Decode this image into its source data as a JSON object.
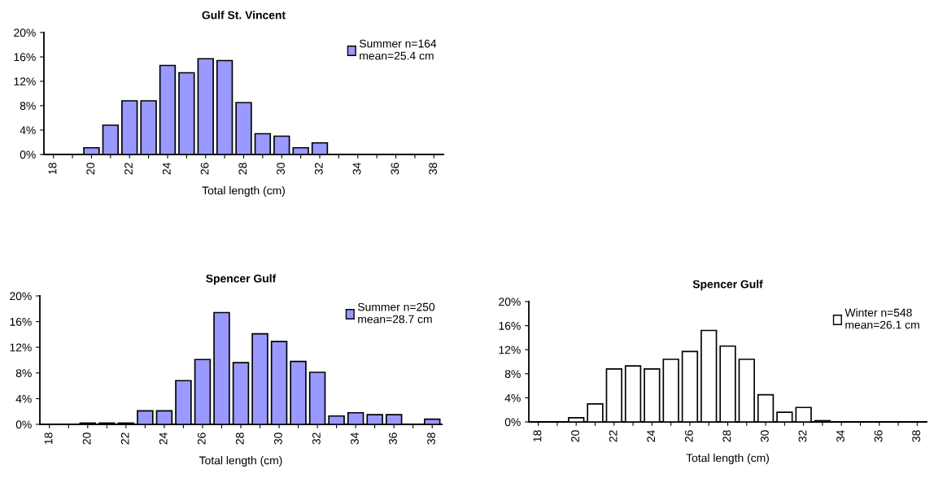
{
  "chart_data": [
    {
      "type": "bar",
      "title": "Gulf St. Vincent",
      "xlabel": "Total length (cm)",
      "categories": [
        "18",
        null,
        "20",
        null,
        "22",
        null,
        "24",
        null,
        "26",
        null,
        "28",
        null,
        "30",
        null,
        "32",
        null,
        "34",
        null,
        "36",
        null,
        "38"
      ],
      "series": [
        {
          "name": "Summer n=164\nmean=25.4 cm",
          "color": "#9999ff",
          "values": [
            0,
            0,
            1.1,
            4.8,
            8.8,
            8.8,
            14.6,
            13.4,
            15.7,
            15.4,
            8.5,
            3.4,
            3.0,
            1.1,
            1.9,
            0,
            0,
            0,
            0,
            0,
            0
          ]
        }
      ],
      "ylim": [
        0,
        20
      ],
      "yticks": [
        {
          "value": 0,
          "label": "0%"
        },
        {
          "value": 4,
          "label": "4%"
        },
        {
          "value": 8,
          "label": "8%"
        },
        {
          "value": 12,
          "label": "12%"
        },
        {
          "value": 16,
          "label": "16%"
        },
        {
          "value": 20,
          "label": "20%"
        }
      ],
      "legend": "top right"
    },
    {
      "type": "bar",
      "title": "Spencer Gulf",
      "xlabel": "Total length (cm)",
      "categories": [
        "18",
        null,
        "20",
        null,
        "22",
        null,
        "24",
        null,
        "26",
        null,
        "28",
        null,
        "30",
        null,
        "32",
        null,
        "34",
        null,
        "36",
        null,
        "38"
      ],
      "series": [
        {
          "name": "Summer n=250\nmean=28.7 cm",
          "color": "#9999ff",
          "values": [
            0,
            0,
            0.2,
            0.2,
            0.2,
            2.1,
            2.1,
            6.8,
            10.1,
            17.4,
            9.6,
            14.1,
            12.9,
            9.8,
            8.1,
            1.3,
            1.8,
            1.5,
            1.5,
            0,
            0.8
          ]
        }
      ],
      "ylim": [
        0,
        20
      ],
      "yticks": [
        {
          "value": 0,
          "label": "0%"
        },
        {
          "value": 4,
          "label": "4%"
        },
        {
          "value": 8,
          "label": "8%"
        },
        {
          "value": 12,
          "label": "12%"
        },
        {
          "value": 16,
          "label": "16%"
        },
        {
          "value": 20,
          "label": "20%"
        }
      ],
      "legend": "top right"
    },
    {
      "type": "bar",
      "title": "Spencer Gulf",
      "xlabel": "Total length (cm)",
      "categories": [
        "18",
        null,
        "20",
        null,
        "22",
        null,
        "24",
        null,
        "26",
        null,
        "28",
        null,
        "30",
        null,
        "32",
        null,
        "34",
        null,
        "36",
        null,
        "38"
      ],
      "series": [
        {
          "name": "Winter n=548\nmean=26.1 cm",
          "color": "#ffffff",
          "values": [
            0,
            0,
            0.7,
            3.0,
            8.8,
            9.3,
            8.8,
            10.4,
            11.7,
            15.2,
            12.6,
            10.4,
            4.5,
            1.6,
            2.4,
            0.2,
            0,
            0,
            0,
            0,
            0
          ]
        }
      ],
      "ylim": [
        0,
        20
      ],
      "yticks": [
        {
          "value": 0,
          "label": "0%"
        },
        {
          "value": 4,
          "label": "4%"
        },
        {
          "value": 8,
          "label": "8%"
        },
        {
          "value": 12,
          "label": "12%"
        },
        {
          "value": 16,
          "label": "16%"
        },
        {
          "value": 20,
          "label": "20%"
        }
      ],
      "legend": "top right"
    }
  ]
}
